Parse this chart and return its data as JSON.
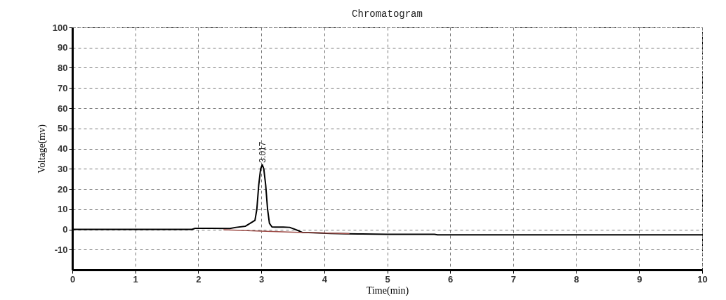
{
  "chart_data": {
    "type": "line",
    "title": "Chromatogram",
    "xlabel": "Time(min)",
    "ylabel": "Voltage(mv)",
    "xlim": [
      0,
      10
    ],
    "xticks": [
      0,
      1,
      2,
      3,
      4,
      5,
      6,
      7,
      8,
      9,
      10
    ],
    "ylim": [
      -20,
      100
    ],
    "yticks": [
      -10,
      0,
      10,
      20,
      30,
      40,
      50,
      60,
      70,
      80,
      90,
      100
    ],
    "grid": true,
    "line_style": "solid",
    "series": [
      {
        "color": "#000000",
        "x": [
          0,
          1.9,
          1.95,
          2.2,
          2.5,
          2.6,
          2.75,
          2.85,
          2.9,
          2.93,
          2.96,
          2.99,
          3.017,
          3.04,
          3.07,
          3.1,
          3.13,
          3.17,
          3.22,
          3.35,
          3.45,
          3.52,
          3.6,
          3.66,
          3.75,
          3.9,
          4.1,
          4.35,
          4.6,
          5.0,
          5.75,
          5.8,
          10
        ],
        "values": [
          0,
          0,
          0.5,
          0.5,
          0.4,
          1.0,
          1.6,
          3.5,
          4.5,
          10,
          22,
          30,
          32,
          30,
          22,
          10,
          3,
          1.2,
          1.1,
          1.1,
          1.0,
          0.2,
          -0.8,
          -1.6,
          -1.6,
          -1.7,
          -2.0,
          -2.2,
          -2.3,
          -2.4,
          -2.4,
          -2.7,
          -2.7
        ]
      },
      {
        "color": "#a0504b",
        "x": [
          2.4,
          3.0,
          3.6,
          4.4
        ],
        "values": [
          -0.2,
          -0.9,
          -1.5,
          -2.1
        ]
      }
    ],
    "annotations": [
      {
        "text": "3.017",
        "x": 3.017,
        "y": 33
      }
    ]
  }
}
